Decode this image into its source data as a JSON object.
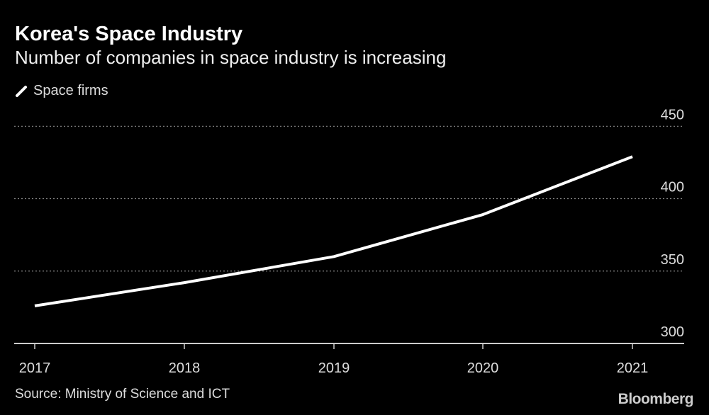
{
  "chart_data": {
    "type": "line",
    "title": "Korea's Space Industry",
    "subtitle": "Number of companies in space industry is increasing",
    "categories": [
      "2017",
      "2018",
      "2019",
      "2020",
      "2021"
    ],
    "series": [
      {
        "name": "Space firms",
        "values": [
          326,
          342,
          360,
          389,
          429
        ],
        "color": "#ffffff"
      }
    ],
    "ylim": [
      300,
      450
    ],
    "yticks": [
      300,
      350,
      400,
      450
    ],
    "y_axis_side": "right",
    "grid": true,
    "legend": "top-left",
    "source": "Source: Ministry of Science and ICT",
    "brand": "Bloomberg",
    "background": "#000000"
  }
}
